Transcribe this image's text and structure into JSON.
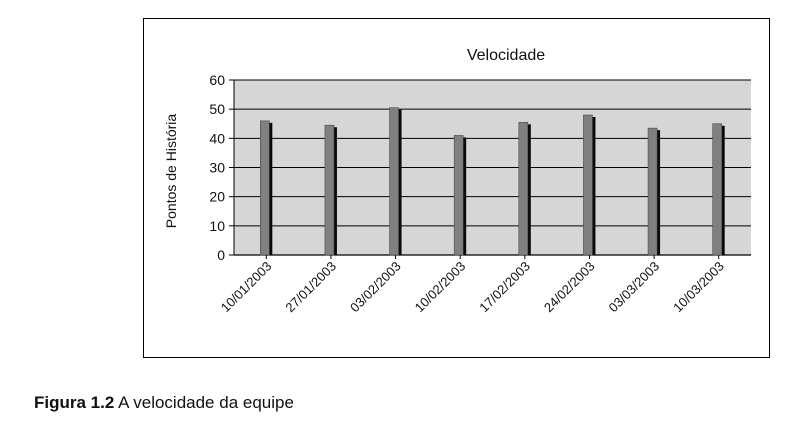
{
  "caption": {
    "label": "Figura 1.2",
    "text": "A velocidade da equipe"
  },
  "colors": {
    "plot_background": "#d6d6d6",
    "bar_front": "#808080",
    "bar_side": "#0a0a0a",
    "grid": "#000000",
    "text": "#111111"
  },
  "chart_data": {
    "type": "bar",
    "style": "3d-column",
    "title": "Velocidade",
    "xlabel": "",
    "ylabel": "Pontos de História",
    "ylim": [
      0,
      60
    ],
    "yticks": [
      0,
      10,
      20,
      30,
      40,
      50,
      60
    ],
    "grid": true,
    "legend": "none",
    "categories": [
      "10/01/2003",
      "27/01/2003",
      "03/02/2003",
      "10/02/2003",
      "17/02/2003",
      "24/02/2003",
      "03/03/2003",
      "10/03/2003"
    ],
    "values": [
      46,
      44.5,
      50.5,
      41,
      45.5,
      48,
      43.5,
      45
    ]
  }
}
